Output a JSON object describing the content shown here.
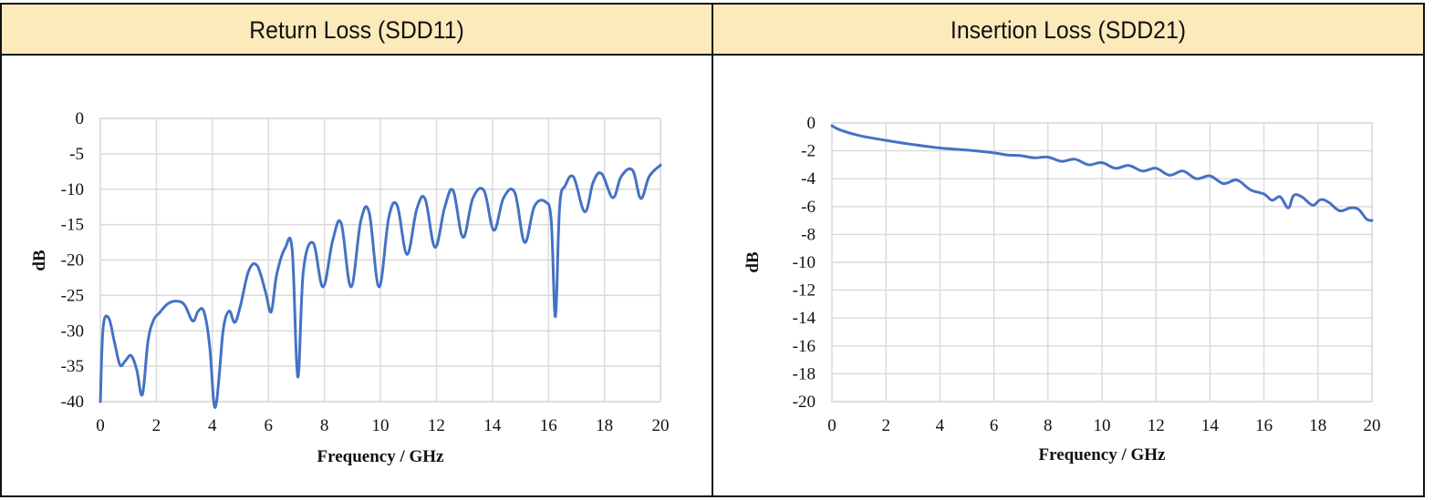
{
  "table": {
    "headers": [
      "Return Loss (SDD11)",
      "Insertion Loss (SDD21)"
    ]
  },
  "colors": {
    "header_bg": "#fdeaba",
    "series": "#4472c4",
    "grid": "#d9d9d9"
  },
  "chart_data": [
    {
      "type": "line",
      "title": "",
      "xlabel": "Frequency / GHz",
      "ylabel": "dB",
      "xlim": [
        0,
        20
      ],
      "ylim": [
        -40,
        0
      ],
      "xticks": [
        0,
        2,
        4,
        6,
        8,
        10,
        12,
        14,
        16,
        18,
        20
      ],
      "yticks": [
        0,
        -5,
        -10,
        -15,
        -20,
        -25,
        -30,
        -35,
        -40
      ],
      "grid": true,
      "series": [
        {
          "x": [
            0,
            0.1,
            0.3,
            0.5,
            0.7,
            0.9,
            1.1,
            1.3,
            1.5,
            1.7,
            1.9,
            2.1,
            2.4,
            2.7,
            3.0,
            3.3,
            3.5,
            3.7,
            3.9,
            4.05,
            4.15,
            4.25,
            4.4,
            4.6,
            4.8,
            5.0,
            5.3,
            5.6,
            5.9,
            6.1,
            6.3,
            6.6,
            6.85,
            7.05,
            7.25,
            7.6,
            7.95,
            8.3,
            8.6,
            8.95,
            9.3,
            9.6,
            9.95,
            10.3,
            10.6,
            10.95,
            11.3,
            11.6,
            11.95,
            12.3,
            12.6,
            12.95,
            13.3,
            13.7,
            14.05,
            14.4,
            14.8,
            15.15,
            15.5,
            15.9,
            16.1,
            16.25,
            16.4,
            16.6,
            16.9,
            17.3,
            17.6,
            17.9,
            18.3,
            18.6,
            19.0,
            19.3,
            19.6,
            20.0
          ],
          "y": [
            -40,
            -29.5,
            -28.2,
            -31.5,
            -34.8,
            -34.2,
            -33.5,
            -35.5,
            -39,
            -31.5,
            -28.5,
            -27.5,
            -26.2,
            -25.8,
            -26.3,
            -28.6,
            -27.2,
            -27.3,
            -32,
            -40,
            -40,
            -36,
            -29.5,
            -27.2,
            -28.8,
            -26.5,
            -21.5,
            -20.8,
            -24.5,
            -27.3,
            -22,
            -18.3,
            -18.6,
            -36.5,
            -21.5,
            -17.6,
            -23.8,
            -17.2,
            -14.8,
            -23.8,
            -14.5,
            -13.3,
            -23.8,
            -14,
            -12.3,
            -19.2,
            -12.8,
            -11.4,
            -18.2,
            -12.5,
            -10.2,
            -16.8,
            -11.3,
            -10.2,
            -15.8,
            -11.2,
            -10.5,
            -17.5,
            -12.4,
            -11.8,
            -14.5,
            -28,
            -12.5,
            -9.5,
            -8.3,
            -13.2,
            -9,
            -7.8,
            -11.2,
            -8.2,
            -7.3,
            -11.3,
            -8.2,
            -6.6
          ]
        }
      ]
    },
    {
      "type": "line",
      "title": "",
      "xlabel": "Frequency / GHz",
      "ylabel": "dB",
      "xlim": [
        0,
        20
      ],
      "ylim": [
        -20,
        0
      ],
      "xticks": [
        0,
        2,
        4,
        6,
        8,
        10,
        12,
        14,
        16,
        18,
        20
      ],
      "yticks": [
        0,
        -2,
        -4,
        -6,
        -8,
        -10,
        -12,
        -14,
        -16,
        -18,
        -20
      ],
      "grid": true,
      "series": [
        {
          "x": [
            0,
            0.3,
            1,
            2,
            3,
            4,
            5,
            6,
            6.5,
            7,
            7.5,
            8,
            8.5,
            9,
            9.5,
            10,
            10.5,
            11,
            11.5,
            12,
            12.5,
            13,
            13.5,
            14,
            14.5,
            15,
            15.5,
            16,
            16.3,
            16.6,
            16.9,
            17.1,
            17.4,
            17.8,
            18.1,
            18.4,
            18.8,
            19.2,
            19.5,
            19.8,
            20
          ],
          "y": [
            -0.2,
            -0.5,
            -0.9,
            -1.25,
            -1.55,
            -1.8,
            -1.95,
            -2.15,
            -2.3,
            -2.35,
            -2.5,
            -2.45,
            -2.75,
            -2.6,
            -3.0,
            -2.85,
            -3.25,
            -3.05,
            -3.45,
            -3.25,
            -3.75,
            -3.45,
            -4.0,
            -3.8,
            -4.35,
            -4.1,
            -4.8,
            -5.1,
            -5.55,
            -5.3,
            -6.1,
            -5.2,
            -5.3,
            -5.9,
            -5.5,
            -5.7,
            -6.3,
            -6.1,
            -6.2,
            -6.9,
            -7.0
          ]
        }
      ]
    }
  ]
}
